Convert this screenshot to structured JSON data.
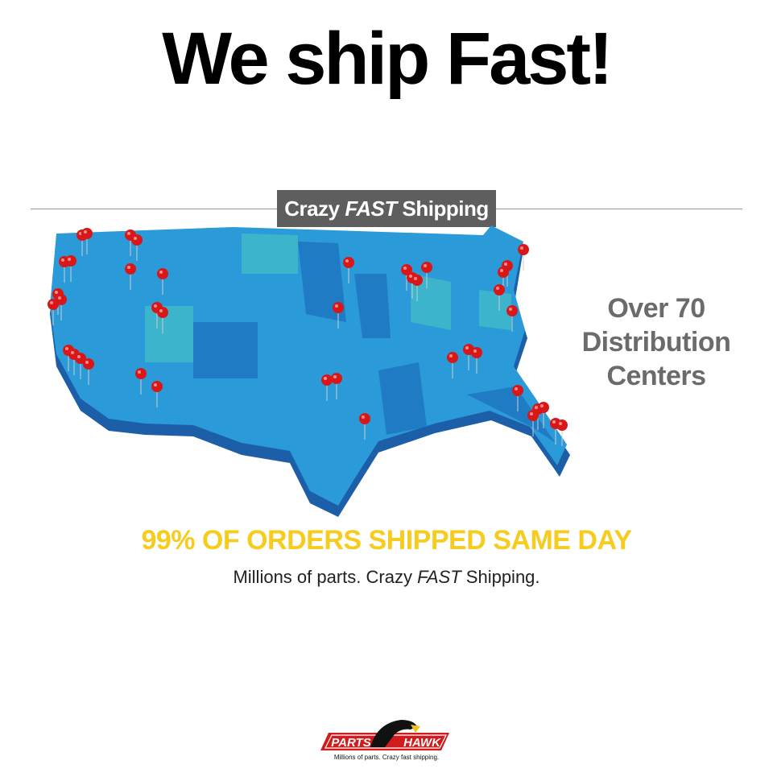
{
  "headline": "We ship Fast!",
  "banner": {
    "pre": "Crazy ",
    "emph": "FAST",
    "post": " Shipping"
  },
  "side_text": {
    "line1": "Over 70",
    "line2": "Distribution",
    "line3": "Centers"
  },
  "highlight": "99% OF ORDERS SHIPPED SAME DAY",
  "subline": {
    "pre": "Millions of parts. Crazy ",
    "emph": "FAST",
    "post": " Shipping."
  },
  "logo": {
    "left": "PARTS",
    "right": "HAWK",
    "tagline": "Millions of parts. Crazy fast shipping."
  },
  "colors": {
    "map_blue": "#2a9ad8",
    "map_dark": "#1c5fa8",
    "pin_red": "#d81818",
    "highlight_yellow": "#f6cc1e",
    "banner_gray": "#5e5e5e"
  },
  "icons": {
    "pin": "map-pin-icon",
    "logo": "hawk-logo"
  }
}
